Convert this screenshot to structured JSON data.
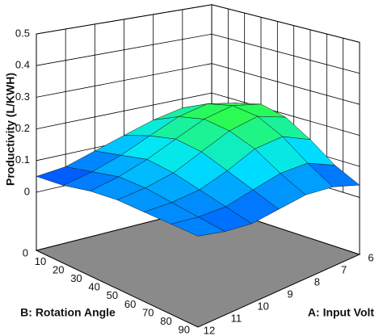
{
  "chart_data": {
    "type": "surface",
    "z_label": "Productivity (L/KWH)",
    "x_label": "A: Input Volt",
    "y_label": "B: Rotation Angle",
    "x": [
      6,
      7,
      8,
      9,
      10,
      11,
      12
    ],
    "y": [
      0,
      15,
      30,
      45,
      60,
      75,
      90
    ],
    "z": [
      [
        0.16,
        0.17,
        0.15,
        0.12,
        0.09,
        0.06,
        0.05
      ],
      [
        0.19,
        0.21,
        0.19,
        0.15,
        0.11,
        0.08,
        0.06
      ],
      [
        0.21,
        0.23,
        0.21,
        0.17,
        0.13,
        0.1,
        0.08
      ],
      [
        0.19,
        0.22,
        0.2,
        0.16,
        0.12,
        0.1,
        0.09
      ],
      [
        0.14,
        0.18,
        0.17,
        0.13,
        0.1,
        0.09,
        0.09
      ],
      [
        0.08,
        0.12,
        0.12,
        0.1,
        0.08,
        0.08,
        0.09
      ],
      [
        0.04,
        0.07,
        0.08,
        0.07,
        0.06,
        0.07,
        0.09
      ]
    ],
    "xlim": [
      6,
      12
    ],
    "ylim": [
      0,
      90
    ],
    "zlim": [
      0,
      0.5
    ],
    "xticks": [
      6,
      7,
      8,
      9,
      10,
      11,
      12
    ],
    "yticks": [
      0,
      10,
      20,
      30,
      40,
      50,
      60,
      70,
      80,
      90
    ],
    "zticks": [
      0,
      0.1,
      0.2,
      0.3,
      0.4,
      0.5
    ],
    "colormap": [
      "#0033ff",
      "#00e5ff",
      "#33ff33"
    ],
    "grid": true
  }
}
